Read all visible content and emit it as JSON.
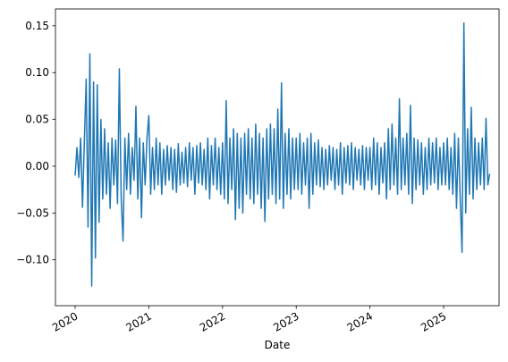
{
  "chart_data": {
    "type": "line",
    "xlabel": "Date",
    "xlim": [
      2019.733,
      2025.752
    ],
    "xticks": [
      2020,
      2021,
      2022,
      2023,
      2024,
      2025
    ],
    "ylim": [
      -0.149,
      0.168
    ],
    "yticks": [
      {
        "value": -0.1,
        "label": "−0.10"
      },
      {
        "value": -0.05,
        "label": "−0.05"
      },
      {
        "value": 0,
        "label": "0.00"
      },
      {
        "value": 0.05,
        "label": "0.05"
      },
      {
        "value": 0.1,
        "label": "0.10"
      },
      {
        "value": 0.15,
        "label": "0.15"
      }
    ],
    "x": [
      2020,
      2020.025,
      2020.05,
      2020.075,
      2020.1,
      2020.125,
      2020.15,
      2020.175,
      2020.2,
      2020.225,
      2020.25,
      2020.275,
      2020.3,
      2020.325,
      2020.35,
      2020.375,
      2020.4,
      2020.425,
      2020.45,
      2020.475,
      2020.5,
      2020.525,
      2020.55,
      2020.575,
      2020.6,
      2020.625,
      2020.65,
      2020.675,
      2020.7,
      2020.725,
      2020.75,
      2020.775,
      2020.8,
      2020.825,
      2020.85,
      2020.875,
      2020.9,
      2020.925,
      2020.95,
      2020.975,
      2021,
      2021.025,
      2021.05,
      2021.075,
      2021.1,
      2021.125,
      2021.15,
      2021.175,
      2021.2,
      2021.225,
      2021.25,
      2021.275,
      2021.3,
      2021.325,
      2021.35,
      2021.375,
      2021.4,
      2021.425,
      2021.45,
      2021.475,
      2021.5,
      2021.525,
      2021.55,
      2021.575,
      2021.6,
      2021.625,
      2021.65,
      2021.675,
      2021.7,
      2021.725,
      2021.75,
      2021.775,
      2021.8,
      2021.825,
      2021.85,
      2021.875,
      2021.9,
      2021.925,
      2021.95,
      2021.975,
      2022,
      2022.025,
      2022.05,
      2022.075,
      2022.1,
      2022.125,
      2022.15,
      2022.175,
      2022.2,
      2022.225,
      2022.25,
      2022.275,
      2022.3,
      2022.325,
      2022.35,
      2022.375,
      2022.4,
      2022.425,
      2022.45,
      2022.475,
      2022.5,
      2022.525,
      2022.55,
      2022.575,
      2022.6,
      2022.625,
      2022.65,
      2022.675,
      2022.7,
      2022.725,
      2022.75,
      2022.775,
      2022.8,
      2022.825,
      2022.85,
      2022.875,
      2022.9,
      2022.925,
      2022.95,
      2022.975,
      2023,
      2023.025,
      2023.05,
      2023.075,
      2023.1,
      2023.125,
      2023.15,
      2023.175,
      2023.2,
      2023.225,
      2023.25,
      2023.275,
      2023.3,
      2023.325,
      2023.35,
      2023.375,
      2023.4,
      2023.425,
      2023.45,
      2023.475,
      2023.5,
      2023.525,
      2023.55,
      2023.575,
      2023.6,
      2023.625,
      2023.65,
      2023.675,
      2023.7,
      2023.725,
      2023.75,
      2023.775,
      2023.8,
      2023.825,
      2023.85,
      2023.875,
      2023.9,
      2023.925,
      2023.95,
      2023.975,
      2024,
      2024.025,
      2024.05,
      2024.075,
      2024.1,
      2024.125,
      2024.15,
      2024.175,
      2024.2,
      2024.225,
      2024.25,
      2024.275,
      2024.3,
      2024.325,
      2024.35,
      2024.375,
      2024.4,
      2024.425,
      2024.45,
      2024.475,
      2024.5,
      2024.525,
      2024.55,
      2024.575,
      2024.6,
      2024.625,
      2024.65,
      2024.675,
      2024.7,
      2024.725,
      2024.75,
      2024.775,
      2024.8,
      2024.825,
      2024.85,
      2024.875,
      2024.9,
      2024.925,
      2024.95,
      2024.975,
      2025,
      2025.025,
      2025.05,
      2025.075,
      2025.1,
      2025.125,
      2025.15,
      2025.175,
      2025.2,
      2025.225,
      2025.25,
      2025.275,
      2025.3,
      2025.325,
      2025.35,
      2025.375,
      2025.4,
      2025.425,
      2025.45,
      2025.475,
      2025.5,
      2025.525,
      2025.55,
      2025.575,
      2025.6,
      2025.625
    ],
    "series": [
      {
        "color": "#1f77b4",
        "values": [
          -0.01,
          0.02,
          -0.012,
          0.03,
          -0.044,
          0.025,
          0.093,
          -0.065,
          0.12,
          -0.128,
          0.09,
          -0.098,
          0.087,
          -0.06,
          0.05,
          -0.035,
          0.04,
          -0.03,
          0.025,
          -0.045,
          0.03,
          -0.02,
          0.028,
          -0.04,
          0.104,
          -0.035,
          -0.08,
          0.03,
          -0.025,
          0.035,
          -0.03,
          0.02,
          -0.015,
          0.064,
          -0.035,
          0.03,
          -0.055,
          0.025,
          -0.02,
          0.03,
          0.054,
          -0.03,
          0.02,
          -0.025,
          0.03,
          -0.02,
          0.025,
          -0.03,
          0.018,
          -0.02,
          0.022,
          -0.015,
          0.02,
          -0.025,
          0.018,
          -0.028,
          0.024,
          -0.02,
          0.015,
          -0.018,
          0.02,
          -0.022,
          0.025,
          -0.015,
          0.02,
          -0.03,
          0.022,
          -0.018,
          0.025,
          -0.02,
          0.018,
          -0.025,
          0.03,
          -0.035,
          0.022,
          -0.02,
          0.03,
          -0.025,
          0.02,
          -0.03,
          0.025,
          -0.035,
          0.07,
          -0.04,
          0.03,
          -0.025,
          0.04,
          -0.057,
          0.035,
          -0.045,
          0.03,
          -0.05,
          0.035,
          -0.03,
          0.04,
          -0.035,
          0.03,
          -0.04,
          0.045,
          -0.03,
          0.035,
          -0.045,
          0.03,
          -0.059,
          0.04,
          -0.035,
          0.045,
          -0.03,
          0.04,
          -0.04,
          0.061,
          -0.035,
          0.089,
          -0.045,
          0.035,
          -0.03,
          0.04,
          -0.035,
          0.03,
          -0.025,
          0.03,
          -0.025,
          0.035,
          -0.03,
          0.025,
          -0.02,
          0.03,
          -0.045,
          0.035,
          -0.03,
          0.025,
          -0.02,
          0.028,
          -0.022,
          0.02,
          -0.025,
          0.018,
          -0.02,
          0.022,
          -0.015,
          0.02,
          -0.025,
          0.018,
          -0.02,
          0.025,
          -0.03,
          0.02,
          -0.018,
          0.022,
          -0.02,
          0.025,
          -0.025,
          0.02,
          -0.015,
          0.018,
          -0.02,
          0.022,
          -0.025,
          0.02,
          -0.015,
          0.02,
          -0.025,
          0.03,
          -0.02,
          0.025,
          -0.03,
          0.02,
          -0.018,
          0.025,
          -0.035,
          0.04,
          -0.025,
          0.045,
          -0.02,
          0.03,
          -0.03,
          0.072,
          -0.025,
          0.03,
          -0.02,
          0.035,
          -0.03,
          0.065,
          -0.04,
          0.03,
          -0.025,
          0.028,
          -0.02,
          0.025,
          -0.03,
          0.02,
          -0.025,
          0.03,
          -0.02,
          0.025,
          -0.018,
          0.03,
          -0.025,
          0.02,
          -0.02,
          0.025,
          -0.02,
          0.03,
          -0.025,
          0.02,
          -0.03,
          0.035,
          -0.045,
          0.03,
          -0.035,
          -0.092,
          0.153,
          -0.05,
          0.04,
          -0.03,
          0.063,
          -0.035,
          0.03,
          -0.025,
          0.025,
          -0.02,
          0.03,
          -0.025,
          0.051,
          -0.02,
          -0.008
        ]
      }
    ]
  }
}
